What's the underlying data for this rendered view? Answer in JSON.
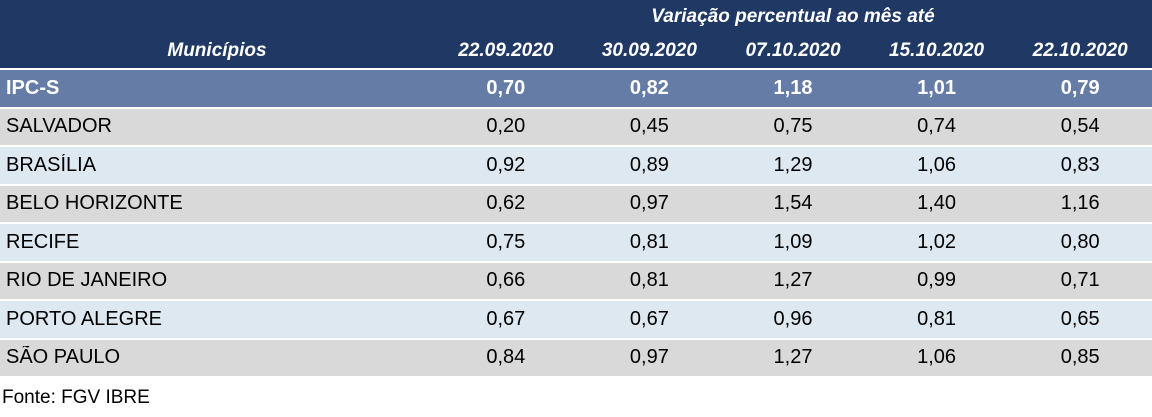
{
  "colors": {
    "header_bg": "#1F3864",
    "summary_bg": "#657DA6",
    "row_gray_bg": "#D9D9D9",
    "row_blue_bg": "#DEE8F1",
    "header_text": "#FFFFFF",
    "body_text": "#000000",
    "separator": "#FFFFFF"
  },
  "header": {
    "group_title": "Variação percentual ao mês até",
    "col_municipios": "Municípios",
    "dates": [
      "22.09.2020",
      "30.09.2020",
      "07.10.2020",
      "15.10.2020",
      "22.10.2020"
    ]
  },
  "summary_row": {
    "label": "IPC-S",
    "values": [
      "0,70",
      "0,82",
      "1,18",
      "1,01",
      "0,79"
    ]
  },
  "rows": [
    {
      "label": "SALVADOR",
      "values": [
        "0,20",
        "0,45",
        "0,75",
        "0,74",
        "0,54"
      ]
    },
    {
      "label": "BRASÍLIA",
      "values": [
        "0,92",
        "0,89",
        "1,29",
        "1,06",
        "0,83"
      ]
    },
    {
      "label": "BELO HORIZONTE",
      "values": [
        "0,62",
        "0,97",
        "1,54",
        "1,40",
        "1,16"
      ]
    },
    {
      "label": "RECIFE",
      "values": [
        "0,75",
        "0,81",
        "1,09",
        "1,02",
        "0,80"
      ]
    },
    {
      "label": "RIO DE JANEIRO",
      "values": [
        "0,66",
        "0,81",
        "1,27",
        "0,99",
        "0,71"
      ]
    },
    {
      "label": "PORTO ALEGRE",
      "values": [
        "0,67",
        "0,67",
        "0,96",
        "0,81",
        "0,65"
      ]
    },
    {
      "label": "SÃO PAULO",
      "values": [
        "0,84",
        "0,97",
        "1,27",
        "1,06",
        "0,85"
      ]
    }
  ],
  "footer": {
    "source": "Fonte: FGV IBRE"
  },
  "chart_data": {
    "type": "table",
    "title": "Variação percentual ao mês até",
    "row_header": "Municípios",
    "columns": [
      "22.09.2020",
      "30.09.2020",
      "07.10.2020",
      "15.10.2020",
      "22.10.2020"
    ],
    "rows": [
      {
        "name": "IPC-S",
        "values": [
          0.7,
          0.82,
          1.18,
          1.01,
          0.79
        ]
      },
      {
        "name": "SALVADOR",
        "values": [
          0.2,
          0.45,
          0.75,
          0.74,
          0.54
        ]
      },
      {
        "name": "BRASÍLIA",
        "values": [
          0.92,
          0.89,
          1.29,
          1.06,
          0.83
        ]
      },
      {
        "name": "BELO HORIZONTE",
        "values": [
          0.62,
          0.97,
          1.54,
          1.4,
          1.16
        ]
      },
      {
        "name": "RECIFE",
        "values": [
          0.75,
          0.81,
          1.09,
          1.02,
          0.8
        ]
      },
      {
        "name": "RIO DE JANEIRO",
        "values": [
          0.66,
          0.81,
          1.27,
          0.99,
          0.71
        ]
      },
      {
        "name": "PORTO ALEGRE",
        "values": [
          0.67,
          0.67,
          0.96,
          0.81,
          0.65
        ]
      },
      {
        "name": "SÃO PAULO",
        "values": [
          0.84,
          0.97,
          1.27,
          1.06,
          0.85
        ]
      }
    ],
    "source_note": "Fonte: FGV IBRE",
    "value_format": "decimal-comma, 2 places",
    "legend_position": "none",
    "grid": false
  }
}
